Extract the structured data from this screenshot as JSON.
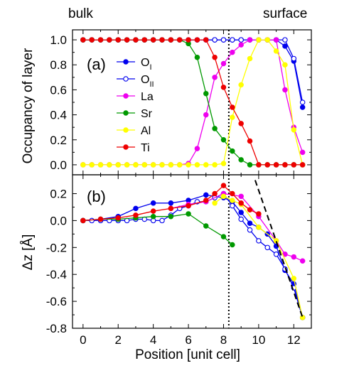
{
  "header": {
    "left_label": "bulk",
    "right_label": "surface"
  },
  "chart_data": [
    {
      "type": "line",
      "panel_label": "(a)",
      "xlabel": "",
      "ylabel": "Occupancy of layer",
      "xlim": [
        -0.6,
        13
      ],
      "ylim": [
        -0.08,
        1.08
      ],
      "yticks": [
        0.0,
        0.2,
        0.4,
        0.6,
        0.8,
        1.0
      ],
      "ytick_labels": [
        "0.0",
        "0.2",
        "0.4",
        "0.6",
        "0.8",
        "1.0"
      ],
      "xticks": [
        0,
        2,
        4,
        6,
        8,
        10,
        12
      ],
      "vline_x": 8.3,
      "legend": {
        "placement": "top-left"
      },
      "series": [
        {
          "name": "O",
          "sub": "I",
          "color": "#0000ee",
          "filled": true,
          "x": [
            0,
            0.5,
            1,
            1.5,
            2,
            2.5,
            3,
            3.5,
            4,
            4.5,
            5,
            5.5,
            6,
            6.5,
            7,
            7.5,
            8,
            8.5,
            9,
            9.5,
            10,
            10.5,
            11,
            11.5,
            12,
            12.5
          ],
          "y": [
            1,
            1,
            1,
            1,
            1,
            1,
            1,
            1,
            1,
            1,
            1,
            1,
            1,
            1,
            1,
            1,
            1,
            1,
            1,
            1,
            1,
            1,
            1,
            0.95,
            0.83,
            0.46
          ]
        },
        {
          "name": "O",
          "sub": "II",
          "color": "#0000ee",
          "filled": false,
          "x": [
            0,
            0.5,
            1,
            1.5,
            2,
            2.5,
            3,
            3.5,
            4,
            4.5,
            5,
            5.5,
            6,
            6.5,
            7,
            7.5,
            8,
            8.5,
            9,
            9.5,
            10,
            10.5,
            11,
            11.5,
            12,
            12.5
          ],
          "y": [
            1,
            1,
            1,
            1,
            1,
            1,
            1,
            1,
            1,
            1,
            1,
            1,
            1,
            1,
            1,
            1,
            1,
            1,
            1,
            1,
            1,
            1,
            1,
            1,
            0.85,
            0.5
          ]
        },
        {
          "name": "La",
          "color": "#ee00ee",
          "filled": true,
          "x": [
            0,
            0.5,
            1,
            1.5,
            2,
            2.5,
            3,
            3.5,
            4,
            4.5,
            5,
            5.5,
            6,
            6.5,
            7,
            7.5,
            8,
            8.5,
            9,
            9.5,
            10,
            10.5,
            11,
            11.5,
            12,
            12.5
          ],
          "y": [
            0,
            0,
            0,
            0,
            0,
            0,
            0,
            0,
            0,
            0,
            0,
            0,
            0.01,
            0.13,
            0.4,
            0.7,
            0.81,
            0.9,
            0.96,
            1,
            1,
            1,
            1,
            0.6,
            0.3,
            0.1
          ]
        },
        {
          "name": "Sr",
          "color": "#009900",
          "filled": true,
          "x": [
            0,
            0.5,
            1,
            1.5,
            2,
            2.5,
            3,
            3.5,
            4,
            4.5,
            5,
            5.5,
            6,
            6.5,
            7,
            7.5,
            8,
            8.5,
            9,
            9.5,
            10,
            10.5,
            11,
            11.5,
            12,
            12.5
          ],
          "y": [
            1,
            1,
            1,
            1,
            1,
            1,
            1,
            1,
            1,
            1,
            1,
            1,
            0.97,
            0.86,
            0.57,
            0.29,
            0.2,
            0.11,
            0.04,
            0,
            0,
            0,
            0,
            0,
            0,
            0
          ]
        },
        {
          "name": "Al",
          "color": "#ffff00",
          "filled": true,
          "x": [
            0,
            0.5,
            1,
            1.5,
            2,
            2.5,
            3,
            3.5,
            4,
            4.5,
            5,
            5.5,
            6,
            6.5,
            7,
            7.5,
            8,
            8.5,
            9,
            9.5,
            10,
            10.5,
            11,
            11.5,
            12,
            12.5
          ],
          "y": [
            0,
            0,
            0,
            0,
            0,
            0,
            0,
            0,
            0,
            0,
            0,
            0,
            0,
            0,
            0,
            0,
            0.01,
            0.38,
            0.64,
            0.85,
            1,
            1,
            0.91,
            0.8,
            0.28,
            0
          ]
        },
        {
          "name": "Ti",
          "color": "#ee0000",
          "filled": true,
          "x": [
            0,
            0.5,
            1,
            1.5,
            2,
            2.5,
            3,
            3.5,
            4,
            4.5,
            5,
            5.5,
            6,
            6.5,
            7,
            7.5,
            8,
            8.5,
            9,
            9.5,
            10,
            10.5,
            11,
            11.5,
            12,
            12.5
          ],
          "y": [
            1,
            1,
            1,
            1,
            1,
            1,
            1,
            1,
            1,
            1,
            1,
            1,
            1,
            1,
            1,
            0.86,
            0.62,
            0.46,
            0.33,
            0.19,
            0,
            0,
            0,
            0,
            0,
            0
          ]
        }
      ]
    },
    {
      "type": "line",
      "panel_label": "(b)",
      "xlabel": "Position [unit cell]",
      "ylabel": "Δz [Å]",
      "xlim": [
        -0.6,
        13
      ],
      "ylim": [
        -0.8,
        0.34
      ],
      "yticks": [
        -0.8,
        -0.6,
        -0.4,
        -0.2,
        0.0,
        0.2
      ],
      "ytick_labels": [
        "-0.8",
        "-0.6",
        "-0.4",
        "-0.2",
        "0.0",
        "0.2"
      ],
      "xticks": [
        0,
        2,
        4,
        6,
        8,
        10,
        12
      ],
      "xtick_labels": [
        "0",
        "2",
        "4",
        "6",
        "8",
        "10",
        "12"
      ],
      "vline_x": 8.3,
      "fit_line": {
        "x": [
          9.8,
          12.5
        ],
        "y": [
          0.3,
          -0.72
        ]
      },
      "series": [
        {
          "name": "O_I",
          "color": "#0000ee",
          "filled": true,
          "x": [
            0,
            1,
            2,
            3,
            4,
            5,
            6,
            7,
            8,
            8.5,
            9,
            9.5,
            10,
            10.5,
            11,
            11.5,
            12,
            12.5
          ],
          "y": [
            0,
            0.01,
            0.03,
            0.09,
            0.13,
            0.13,
            0.15,
            0.19,
            0.17,
            0.14,
            0.06,
            -0.02,
            -0.05,
            -0.1,
            -0.19,
            -0.37,
            -0.47,
            -0.72
          ]
        },
        {
          "name": "O_II",
          "color": "#0000ee",
          "filled": false,
          "x": [
            0,
            0.5,
            1,
            1.5,
            2,
            2.5,
            3,
            3.5,
            4,
            4.5,
            5,
            5.5,
            6,
            6.5,
            7,
            7.5,
            8,
            8.5,
            9,
            9.5,
            10,
            10.5,
            11,
            11.5,
            12,
            12.5
          ],
          "y": [
            0,
            0,
            0,
            0,
            0,
            0,
            0.01,
            0.01,
            0,
            0,
            0.04,
            0.09,
            0.11,
            0.14,
            0.14,
            0.17,
            0.2,
            0.11,
            0.01,
            -0.07,
            -0.15,
            -0.2,
            -0.25,
            -0.36,
            -0.5,
            -0.72
          ]
        },
        {
          "name": "La",
          "color": "#ee00ee",
          "filled": true,
          "x": [
            5,
            6,
            7,
            8,
            9,
            10,
            11,
            11.5,
            12,
            12.5
          ],
          "y": [
            0.09,
            0.12,
            0.14,
            0.2,
            0.18,
            0.03,
            -0.15,
            -0.25,
            -0.27,
            -0.3
          ]
        },
        {
          "name": "Sr",
          "color": "#009900",
          "filled": true,
          "x": [
            0,
            1,
            2,
            3,
            4,
            5,
            6,
            7,
            8,
            8.5
          ],
          "y": [
            0,
            0.01,
            0.01,
            0.02,
            0.03,
            0.03,
            0.05,
            -0.04,
            -0.12,
            -0.18
          ]
        },
        {
          "name": "Al",
          "color": "#ffff00",
          "filled": true,
          "x": [
            7.5,
            8,
            8.5,
            9,
            10,
            11,
            12,
            12.5
          ],
          "y": [
            0.13,
            0.18,
            0.15,
            0.12,
            -0.05,
            -0.15,
            -0.43,
            -0.72
          ]
        },
        {
          "name": "Ti",
          "color": "#ee0000",
          "filled": true,
          "x": [
            0,
            1,
            2,
            3,
            4,
            5,
            6,
            7,
            7.5,
            8,
            8.5,
            9,
            9.5,
            10
          ],
          "y": [
            0,
            0.01,
            0.02,
            0.04,
            0.07,
            0.09,
            0.11,
            0.15,
            0.2,
            0.26,
            0.2,
            0.13,
            0.08,
            0.05
          ]
        }
      ]
    }
  ]
}
